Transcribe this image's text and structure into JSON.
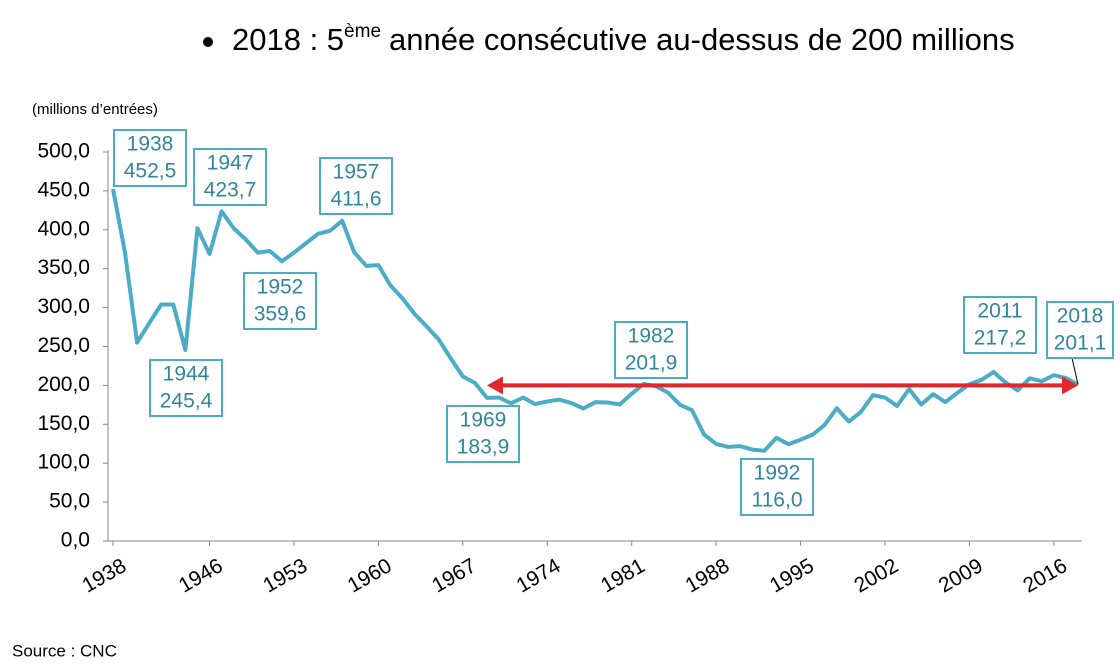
{
  "chart_data": {
    "type": "line",
    "title_parts": [
      "2018 : 5",
      "ème",
      "année consécutive au-dessus de 200 millions"
    ],
    "y_label": "(millions d’entrées)",
    "source": "Source : CNC",
    "color": "#4bacc6",
    "x": [
      1938,
      1939,
      1940,
      1941,
      1942,
      1943,
      1944,
      1945,
      1946,
      1947,
      1948,
      1949,
      1950,
      1951,
      1952,
      1953,
      1954,
      1955,
      1956,
      1957,
      1958,
      1959,
      1960,
      1961,
      1962,
      1963,
      1964,
      1965,
      1966,
      1967,
      1968,
      1969,
      1970,
      1971,
      1972,
      1973,
      1974,
      1975,
      1976,
      1977,
      1978,
      1979,
      1980,
      1981,
      1982,
      1983,
      1984,
      1985,
      1986,
      1987,
      1988,
      1989,
      1990,
      1991,
      1992,
      1993,
      1994,
      1995,
      1996,
      1997,
      1998,
      1999,
      2000,
      2001,
      2002,
      2003,
      2004,
      2005,
      2006,
      2007,
      2008,
      2009,
      2010,
      2011,
      2012,
      2013,
      2014,
      2015,
      2016,
      2017,
      2018
    ],
    "values": [
      452.5,
      370,
      255,
      280,
      304,
      304,
      245.4,
      402,
      369,
      423.7,
      402,
      387.7,
      370.7,
      372.8,
      359.6,
      370.6,
      382.8,
      394.8,
      398.8,
      411.6,
      371,
      353.7,
      354.6,
      328.6,
      311.7,
      291.9,
      275.8,
      259.1,
      234.7,
      211.5,
      203.2,
      183.9,
      184.4,
      177,
      184.4,
      176,
      179.4,
      181.7,
      177.3,
      170.3,
      178.5,
      178.1,
      175.4,
      189.2,
      201.9,
      198.9,
      190.9,
      175.1,
      168.1,
      136.9,
      124.7,
      120.9,
      121.9,
      117.5,
      116.0,
      132.7,
      124.4,
      130.2,
      136.7,
      149.3,
      170.6,
      153.6,
      165.8,
      187.5,
      184.4,
      173.5,
      195.4,
      175.5,
      188.8,
      178.5,
      190.3,
      201.6,
      207.1,
      217.2,
      203.6,
      193.7,
      209.1,
      205.4,
      213.2,
      209.4,
      201.1
    ],
    "xlim": [
      1938,
      2018
    ],
    "ylim": [
      0,
      500
    ],
    "xticks": [
      1938,
      1946,
      1953,
      1960,
      1967,
      1974,
      1981,
      1988,
      1995,
      2002,
      2009,
      2016
    ],
    "yticks": [
      {
        "value": 0,
        "label": "0,0"
      },
      {
        "value": 50,
        "label": "50,0"
      },
      {
        "value": 100,
        "label": "100,0"
      },
      {
        "value": 150,
        "label": "150,0"
      },
      {
        "value": 200,
        "label": "200,0"
      },
      {
        "value": 250,
        "label": "250,0"
      },
      {
        "value": 300,
        "label": "300,0"
      },
      {
        "value": 350,
        "label": "350,0"
      },
      {
        "value": 400,
        "label": "400,0"
      },
      {
        "value": 450,
        "label": "450,0"
      },
      {
        "value": 500,
        "label": "500,0"
      }
    ],
    "annotations": [
      {
        "x": 1938,
        "label": "452,5"
      },
      {
        "x": 1947,
        "label": "423,7"
      },
      {
        "x": 1957,
        "label": "411,6"
      },
      {
        "x": 1952,
        "label": "359,6"
      },
      {
        "x": 1944,
        "label": "245,4"
      },
      {
        "x": 1969,
        "label": "183,9"
      },
      {
        "x": 1982,
        "label": "201,9"
      },
      {
        "x": 1992,
        "label": "116,0"
      },
      {
        "x": 2011,
        "label": "217,2"
      },
      {
        "x": 2018,
        "label": "201,1"
      }
    ],
    "arrow": {
      "from": 1969,
      "to": 2018,
      "value": 200,
      "color": "#e3262b"
    }
  }
}
